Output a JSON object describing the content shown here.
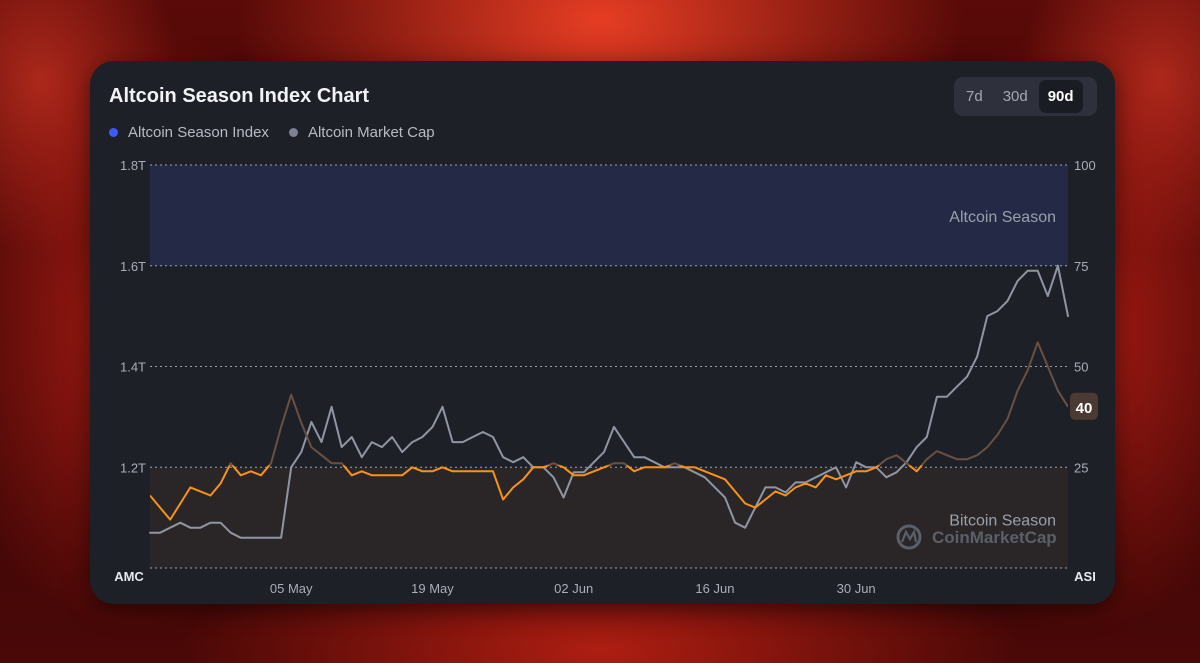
{
  "title": "Altcoin Season Index Chart",
  "range_buttons": [
    {
      "label": "7d",
      "active": false
    },
    {
      "label": "30d",
      "active": false
    },
    {
      "label": "90d",
      "active": true
    }
  ],
  "legend": [
    {
      "label": "Altcoin Season Index",
      "color": "#3d5afe"
    },
    {
      "label": "Altcoin Market Cap",
      "color": "#7d8290"
    }
  ],
  "colors": {
    "index_below": "#f7931a",
    "index_above": "#3d5afe",
    "market_cap": "#8f95a3",
    "altcoin_zone": "#242a45",
    "bitcoin_zone": "#2a2628",
    "badge": "#4a3a33"
  },
  "watermark": "CoinMarketCap",
  "chart_data": {
    "type": "line",
    "left_axis": {
      "name": "AMC",
      "ticks": [
        "1.8T",
        "1.6T",
        "1.4T",
        "1.2T"
      ],
      "values": [
        1.8,
        1.6,
        1.4,
        1.2
      ],
      "range": [
        1.0,
        1.8
      ],
      "unit": "T"
    },
    "right_axis": {
      "name": "ASI",
      "ticks": [
        "100",
        "75",
        "50",
        "25"
      ],
      "values": [
        100,
        75,
        50,
        25
      ],
      "range": [
        0,
        100
      ]
    },
    "x_ticks": [
      "05 May",
      "19 May",
      "02 Jun",
      "16 Jun",
      "30 Jun"
    ],
    "x_tick_days": [
      14,
      28,
      42,
      56,
      70
    ],
    "x_range_days": [
      0,
      91
    ],
    "zones": [
      {
        "label": "Altcoin Season",
        "from": 75,
        "to": 100
      },
      {
        "label": "Bitcoin Season",
        "from": 0,
        "to": 25
      }
    ],
    "current_value_label": "40",
    "series": [
      {
        "name": "Altcoin Season Index",
        "axis": "right",
        "x": [
          0,
          1,
          2,
          3,
          4,
          5,
          6,
          7,
          8,
          9,
          10,
          11,
          12,
          13,
          14,
          15,
          16,
          17,
          18,
          19,
          20,
          21,
          22,
          23,
          24,
          25,
          26,
          27,
          28,
          29,
          30,
          31,
          32,
          33,
          34,
          35,
          36,
          37,
          38,
          39,
          40,
          41,
          42,
          43,
          44,
          45,
          46,
          47,
          48,
          49,
          50,
          51,
          52,
          53,
          54,
          55,
          56,
          57,
          58,
          59,
          60,
          61,
          62,
          63,
          64,
          65,
          66,
          67,
          68,
          69,
          70,
          71,
          72,
          73,
          74,
          75,
          76,
          77,
          78,
          79,
          80,
          81,
          82,
          83,
          84,
          85,
          86,
          87,
          88,
          89,
          90,
          91
        ],
        "values": [
          18,
          15,
          12,
          16,
          20,
          19,
          18,
          21,
          26,
          23,
          24,
          23,
          26,
          35,
          43,
          36,
          30,
          28,
          26,
          26,
          23,
          24,
          23,
          23,
          23,
          23,
          25,
          24,
          24,
          25,
          24,
          24,
          24,
          24,
          24,
          17,
          20,
          22,
          25,
          25,
          26,
          25,
          23,
          23,
          24,
          25,
          26,
          26,
          24,
          25,
          25,
          25,
          26,
          25,
          25,
          24,
          23,
          22,
          19,
          16,
          15,
          17,
          19,
          18,
          20,
          21,
          20,
          23,
          22,
          23,
          24,
          24,
          25,
          27,
          28,
          26,
          24,
          27,
          29,
          28,
          27,
          27,
          28,
          30,
          33,
          37,
          44,
          49,
          56,
          50,
          44,
          40
        ]
      },
      {
        "name": "Altcoin Market Cap",
        "axis": "left",
        "x": [
          0,
          1,
          2,
          3,
          4,
          5,
          6,
          7,
          8,
          9,
          10,
          11,
          12,
          13,
          14,
          15,
          16,
          17,
          18,
          19,
          20,
          21,
          22,
          23,
          24,
          25,
          26,
          27,
          28,
          29,
          30,
          31,
          32,
          33,
          34,
          35,
          36,
          37,
          38,
          39,
          40,
          41,
          42,
          43,
          44,
          45,
          46,
          47,
          48,
          49,
          50,
          51,
          52,
          53,
          54,
          55,
          56,
          57,
          58,
          59,
          60,
          61,
          62,
          63,
          64,
          65,
          66,
          67,
          68,
          69,
          70,
          71,
          72,
          73,
          74,
          75,
          76,
          77,
          78,
          79,
          80,
          81,
          82,
          83,
          84,
          85,
          86,
          87,
          88,
          89,
          90,
          91
        ],
        "values": [
          1.07,
          1.07,
          1.08,
          1.09,
          1.08,
          1.08,
          1.09,
          1.09,
          1.07,
          1.06,
          1.06,
          1.06,
          1.06,
          1.06,
          1.2,
          1.23,
          1.29,
          1.25,
          1.32,
          1.24,
          1.26,
          1.22,
          1.25,
          1.24,
          1.26,
          1.23,
          1.25,
          1.26,
          1.28,
          1.32,
          1.25,
          1.25,
          1.26,
          1.27,
          1.26,
          1.22,
          1.21,
          1.22,
          1.2,
          1.2,
          1.18,
          1.14,
          1.19,
          1.19,
          1.21,
          1.23,
          1.28,
          1.25,
          1.22,
          1.22,
          1.21,
          1.2,
          1.2,
          1.2,
          1.19,
          1.18,
          1.16,
          1.14,
          1.09,
          1.08,
          1.12,
          1.16,
          1.16,
          1.15,
          1.17,
          1.17,
          1.18,
          1.19,
          1.2,
          1.16,
          1.21,
          1.2,
          1.2,
          1.18,
          1.19,
          1.21,
          1.24,
          1.26,
          1.34,
          1.34,
          1.36,
          1.38,
          1.42,
          1.5,
          1.51,
          1.53,
          1.57,
          1.59,
          1.59,
          1.54,
          1.6,
          1.5
        ]
      }
    ]
  }
}
